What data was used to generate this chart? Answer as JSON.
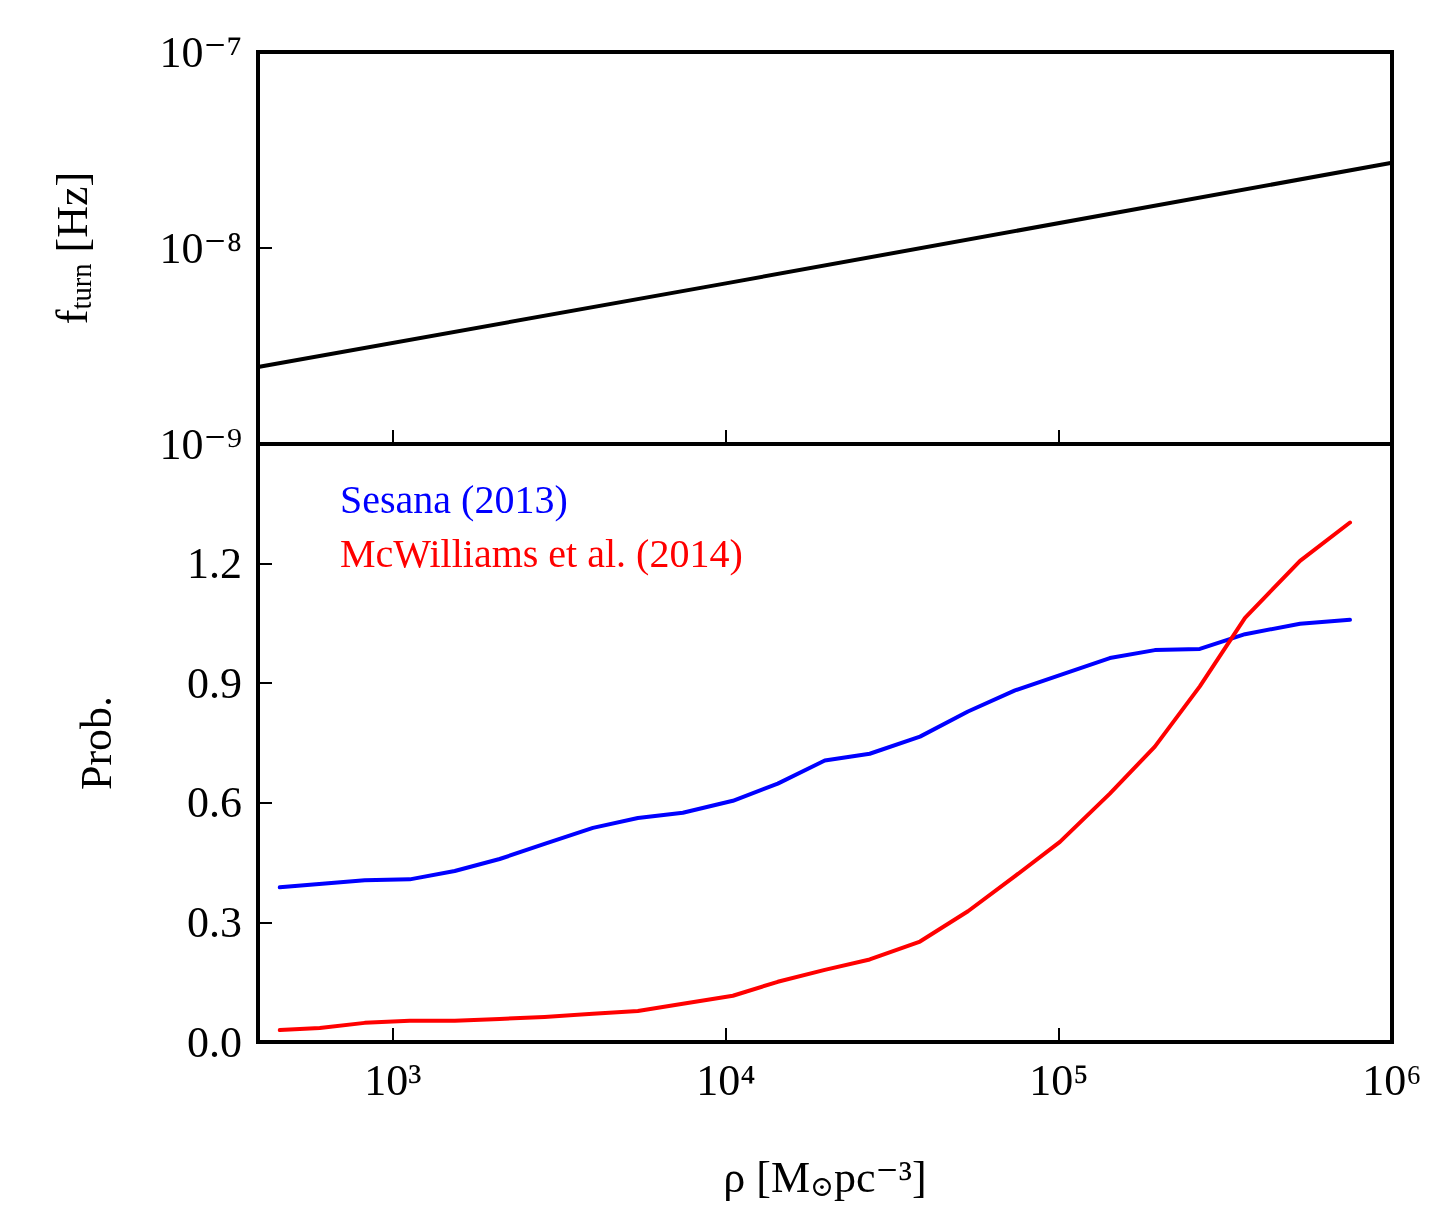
{
  "chart_data": [
    {
      "type": "line",
      "ylabel": "f$_{turn}$ [Hz]",
      "log": "xy",
      "xlim": [
        394,
        1000000
      ],
      "ylim": [
        1e-09,
        1e-07
      ],
      "xticks": [
        {
          "value": 1000,
          "label": null
        },
        {
          "value": 10000,
          "label": null
        },
        {
          "value": 100000,
          "label": null
        },
        {
          "value": 1000000,
          "label": null
        }
      ],
      "yticks": [
        {
          "value": 1e-09,
          "label": "10⁻⁹"
        },
        {
          "value": 1e-08,
          "label": "10⁻⁸"
        },
        {
          "value": 1e-07,
          "label": "10⁻⁷"
        }
      ],
      "tick_labels": "y",
      "grid": false,
      "legend": false,
      "marker": "none",
      "line_style": "solid",
      "series": [
        {
          "color": "#000000",
          "x": [
            394,
            10000,
            1000000
          ],
          "values": [
            2.47e-09,
            6.6e-09,
            2.72e-08
          ]
        }
      ]
    },
    {
      "type": "line",
      "xlabel": "ρ [M$_{⊙}$pc⁻³]",
      "ylabel": "Prob.",
      "log": "x",
      "xlim": [
        394,
        1000000
      ],
      "ylim": [
        0,
        1.5
      ],
      "xticks": [
        {
          "value": 1000,
          "label": "10³"
        },
        {
          "value": 10000,
          "label": "10⁴"
        },
        {
          "value": 100000,
          "label": "10⁵"
        },
        {
          "value": 1000000,
          "label": "10⁶"
        }
      ],
      "yticks": [
        {
          "value": 0,
          "label": "0.0"
        },
        0.3,
        0.6,
        0.9,
        1.2
      ],
      "grid": false,
      "legend": "top left",
      "marker": "none",
      "line_style": "solid",
      "series": [
        {
          "name": "Sesana (2013)",
          "color": "#0000ff",
          "x": [
            458,
            824,
            1125,
            1535,
            2094,
            2856,
            3990,
            5445,
            7430,
            10500,
            14320,
            19820,
            27040,
            38280,
            53330,
            73820,
            100700,
            142200,
            194100,
            264900,
            362000,
            529600,
            748000
          ],
          "values": [
            0.388,
            0.406,
            0.408,
            0.429,
            0.459,
            0.497,
            0.537,
            0.562,
            0.575,
            0.605,
            0.648,
            0.706,
            0.723,
            0.766,
            0.829,
            0.882,
            0.92,
            0.963,
            0.983,
            0.986,
            1.023,
            1.049,
            1.059
          ]
        },
        {
          "name": "McWilliams et al. (2014)",
          "color": "#ff0000",
          "x": [
            458,
            604,
            824,
            1125,
            1535,
            2094,
            2856,
            3990,
            5445,
            7430,
            10500,
            14320,
            19820,
            27040,
            38280,
            53330,
            73820,
            100700,
            142200,
            194100,
            264900,
            362000,
            529600,
            748000
          ],
          "values": [
            0.03,
            0.035,
            0.048,
            0.053,
            0.053,
            0.058,
            0.063,
            0.071,
            0.078,
            0.096,
            0.116,
            0.151,
            0.181,
            0.207,
            0.252,
            0.328,
            0.416,
            0.502,
            0.623,
            0.741,
            0.892,
            1.064,
            1.207,
            1.303
          ]
        }
      ]
    }
  ]
}
